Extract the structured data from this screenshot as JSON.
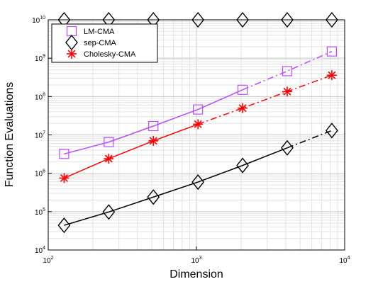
{
  "chart_data": {
    "type": "line",
    "xlabel": "Dimension",
    "ylabel": "Function Evaluations",
    "xscale": "log",
    "yscale": "log",
    "xlim": [
      100,
      10000
    ],
    "ylim": [
      10000,
      10000000000
    ],
    "grid": true,
    "legend_position": "top-left",
    "x_ticks": [
      {
        "base": "10",
        "exp": "2"
      },
      {
        "base": "10",
        "exp": "3"
      },
      {
        "base": "10",
        "exp": "4"
      }
    ],
    "y_ticks": [
      {
        "base": "10",
        "exp": "4"
      },
      {
        "base": "10",
        "exp": "5"
      },
      {
        "base": "10",
        "exp": "6"
      },
      {
        "base": "10",
        "exp": "7"
      },
      {
        "base": "10",
        "exp": "8"
      },
      {
        "base": "10",
        "exp": "9"
      },
      {
        "base": "10",
        "exp": "10"
      }
    ],
    "series": [
      {
        "name": "LM-CMA",
        "color": "#b94bff",
        "marker": "square",
        "x": [
          128,
          256,
          512,
          1024,
          2048,
          4096,
          8192
        ],
        "y": [
          3200000,
          6500000,
          17000000,
          46000000,
          150000000,
          460000000,
          1500000000
        ],
        "solid_until_index": 4
      },
      {
        "name": "sep-CMA",
        "color": "#000000",
        "marker": "diamond",
        "x": [
          128,
          256,
          512,
          1024,
          2048,
          4096,
          8192
        ],
        "y": [
          44000,
          98000,
          240000,
          590000,
          1600000,
          4600000,
          13000000
        ],
        "solid_until_index": 5,
        "top_marker_x": [
          128,
          256,
          512,
          1024,
          2048,
          4096,
          8192
        ],
        "top_marker_y": 10000000000
      },
      {
        "name": "Cholesky-CMA",
        "color": "#ff0000",
        "marker": "asterisk",
        "x": [
          128,
          256,
          512,
          1024,
          2048,
          4096,
          8192
        ],
        "y": [
          750000,
          2400000,
          7000000,
          19000000,
          50000000,
          135000000,
          360000000
        ],
        "solid_until_index": 3
      }
    ]
  }
}
